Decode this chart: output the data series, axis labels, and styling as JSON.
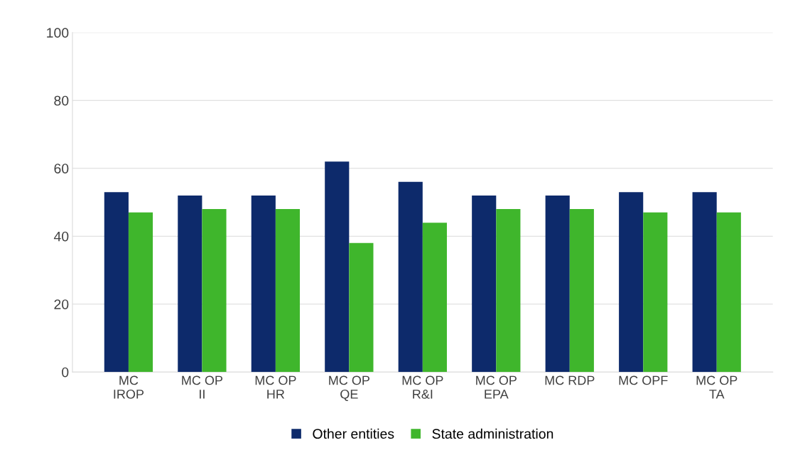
{
  "chart_data": {
    "type": "bar",
    "categories": [
      "MC\nIROP",
      "MC OP\nII",
      "MC OP\nHR",
      "MC OP\nQE",
      "MC OP\nR&I",
      "MC OP\nEPA",
      "MC RDP",
      "MC OPF",
      "MC OP\nTA"
    ],
    "series": [
      {
        "name": "Other entities",
        "color": "#0d2a6b",
        "values": [
          53,
          52,
          52,
          62,
          56,
          52,
          52,
          53,
          53
        ]
      },
      {
        "name": "State administration",
        "color": "#3fb62c",
        "values": [
          47,
          48,
          48,
          38,
          44,
          48,
          48,
          47,
          47
        ]
      }
    ],
    "ylim": [
      0,
      100
    ],
    "yticks": [
      0,
      20,
      40,
      60,
      80,
      100
    ],
    "grid": "y",
    "legend": "bottom"
  }
}
